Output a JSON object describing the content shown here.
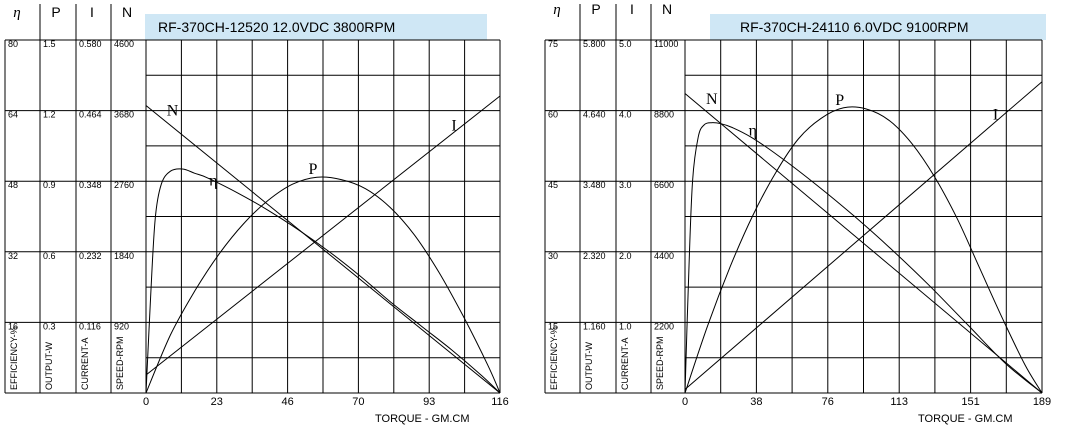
{
  "colors": {
    "title_band": "#cfe7f5",
    "line": "#000000",
    "background": "#ffffff"
  },
  "chart_data": [
    {
      "type": "line",
      "title": "RF-370CH-12520  12.0VDC   3800RPM",
      "xlabel": "TORQUE - GM.CM",
      "xlim": [
        0,
        116
      ],
      "x_ticks": [
        "0",
        "23",
        "46",
        "70",
        "93",
        "116"
      ],
      "scale_headers": [
        "η",
        "P",
        "I",
        "N"
      ],
      "scales": {
        "efficiency": {
          "label": "EFFICIENCY-%",
          "max": 80,
          "ticks": [
            "80",
            "64",
            "48",
            "32",
            "16"
          ]
        },
        "output": {
          "label": "OUTPUT-W",
          "max": 1.5,
          "ticks": [
            "1.5",
            "1.2",
            "0.9",
            "0.6",
            "0.3"
          ]
        },
        "current": {
          "label": "CURRENT-A",
          "max": 0.58,
          "ticks": [
            "0.580",
            "0.464",
            "0.348",
            "0.232",
            "0.116"
          ]
        },
        "speed": {
          "label": "SPEED-RPM",
          "max": 4600,
          "ticks": [
            "4600",
            "3680",
            "2760",
            "1840",
            "920"
          ]
        }
      },
      "series": [
        {
          "name": "N",
          "scale": "speed",
          "x": [
            0,
            116
          ],
          "y": [
            3800,
            0
          ]
        },
        {
          "name": "I",
          "scale": "current",
          "x": [
            0,
            116
          ],
          "y": [
            0.03,
            0.495
          ]
        },
        {
          "name": "P",
          "scale": "output",
          "x": [
            0,
            8,
            16,
            24,
            32,
            40,
            48,
            56,
            64,
            72,
            80,
            88,
            96,
            104,
            112,
            116
          ],
          "y": [
            0,
            0.25,
            0.44,
            0.6,
            0.73,
            0.83,
            0.9,
            0.93,
            0.92,
            0.88,
            0.8,
            0.68,
            0.52,
            0.33,
            0.12,
            0
          ]
        },
        {
          "name": "η",
          "scale": "efficiency",
          "x": [
            0,
            1.5,
            3,
            5,
            8,
            12,
            16,
            20,
            30,
            40,
            50,
            60,
            70,
            80,
            90,
            100,
            110,
            116
          ],
          "y": [
            0,
            22,
            40,
            48,
            51,
            51.5,
            50.5,
            49.5,
            46,
            42,
            37.5,
            32.5,
            27,
            21,
            15.5,
            10,
            4,
            0
          ]
        }
      ]
    },
    {
      "type": "line",
      "title": "RF-370CH-24110   6.0VDC    9100RPM",
      "xlabel": "TORQUE - GM.CM",
      "xlim": [
        0,
        189
      ],
      "x_ticks": [
        "0",
        "38",
        "76",
        "113",
        "151",
        "189"
      ],
      "scale_headers": [
        "η",
        "P",
        "I",
        "N"
      ],
      "scales": {
        "efficiency": {
          "label": "EFFICIENCY-%",
          "max": 75,
          "ticks": [
            "75",
            "60",
            "45",
            "30",
            "15"
          ]
        },
        "output": {
          "label": "OUTPUT-W",
          "max": 5.8,
          "ticks": [
            "5.800",
            "4.640",
            "3.480",
            "2.320",
            "1.160"
          ]
        },
        "current": {
          "label": "CURRENT-A",
          "max": 5.0,
          "ticks": [
            "5.0",
            "4.0",
            "3.0",
            "2.0",
            "1.0"
          ]
        },
        "speed": {
          "label": "SPEED-RPM",
          "max": 11000,
          "ticks": [
            "11000",
            "8800",
            "6600",
            "4400",
            "2200"
          ]
        }
      },
      "series": [
        {
          "name": "N",
          "scale": "speed",
          "x": [
            0,
            189
          ],
          "y": [
            9100,
            0
          ]
        },
        {
          "name": "I",
          "scale": "current",
          "x": [
            0,
            189
          ],
          "y": [
            0.05,
            4.3
          ]
        },
        {
          "name": "P",
          "scale": "output",
          "x": [
            0,
            12,
            24,
            36,
            48,
            60,
            72,
            84,
            96,
            108,
            120,
            132,
            144,
            156,
            168,
            180,
            189
          ],
          "y": [
            0,
            1.08,
            2.03,
            2.85,
            3.53,
            4.07,
            4.4,
            4.57,
            4.55,
            4.37,
            4.0,
            3.47,
            2.8,
            2.0,
            1.2,
            0.45,
            0
          ]
        },
        {
          "name": "η",
          "scale": "efficiency",
          "x": [
            0,
            2,
            4,
            7,
            10,
            14,
            19,
            25,
            35,
            50,
            70,
            90,
            110,
            130,
            150,
            170,
            189
          ],
          "y": [
            0,
            25,
            44,
            53,
            55.5,
            56,
            55.8,
            55,
            53,
            49,
            43,
            36.5,
            29.5,
            22,
            14,
            6,
            0
          ]
        }
      ]
    }
  ]
}
